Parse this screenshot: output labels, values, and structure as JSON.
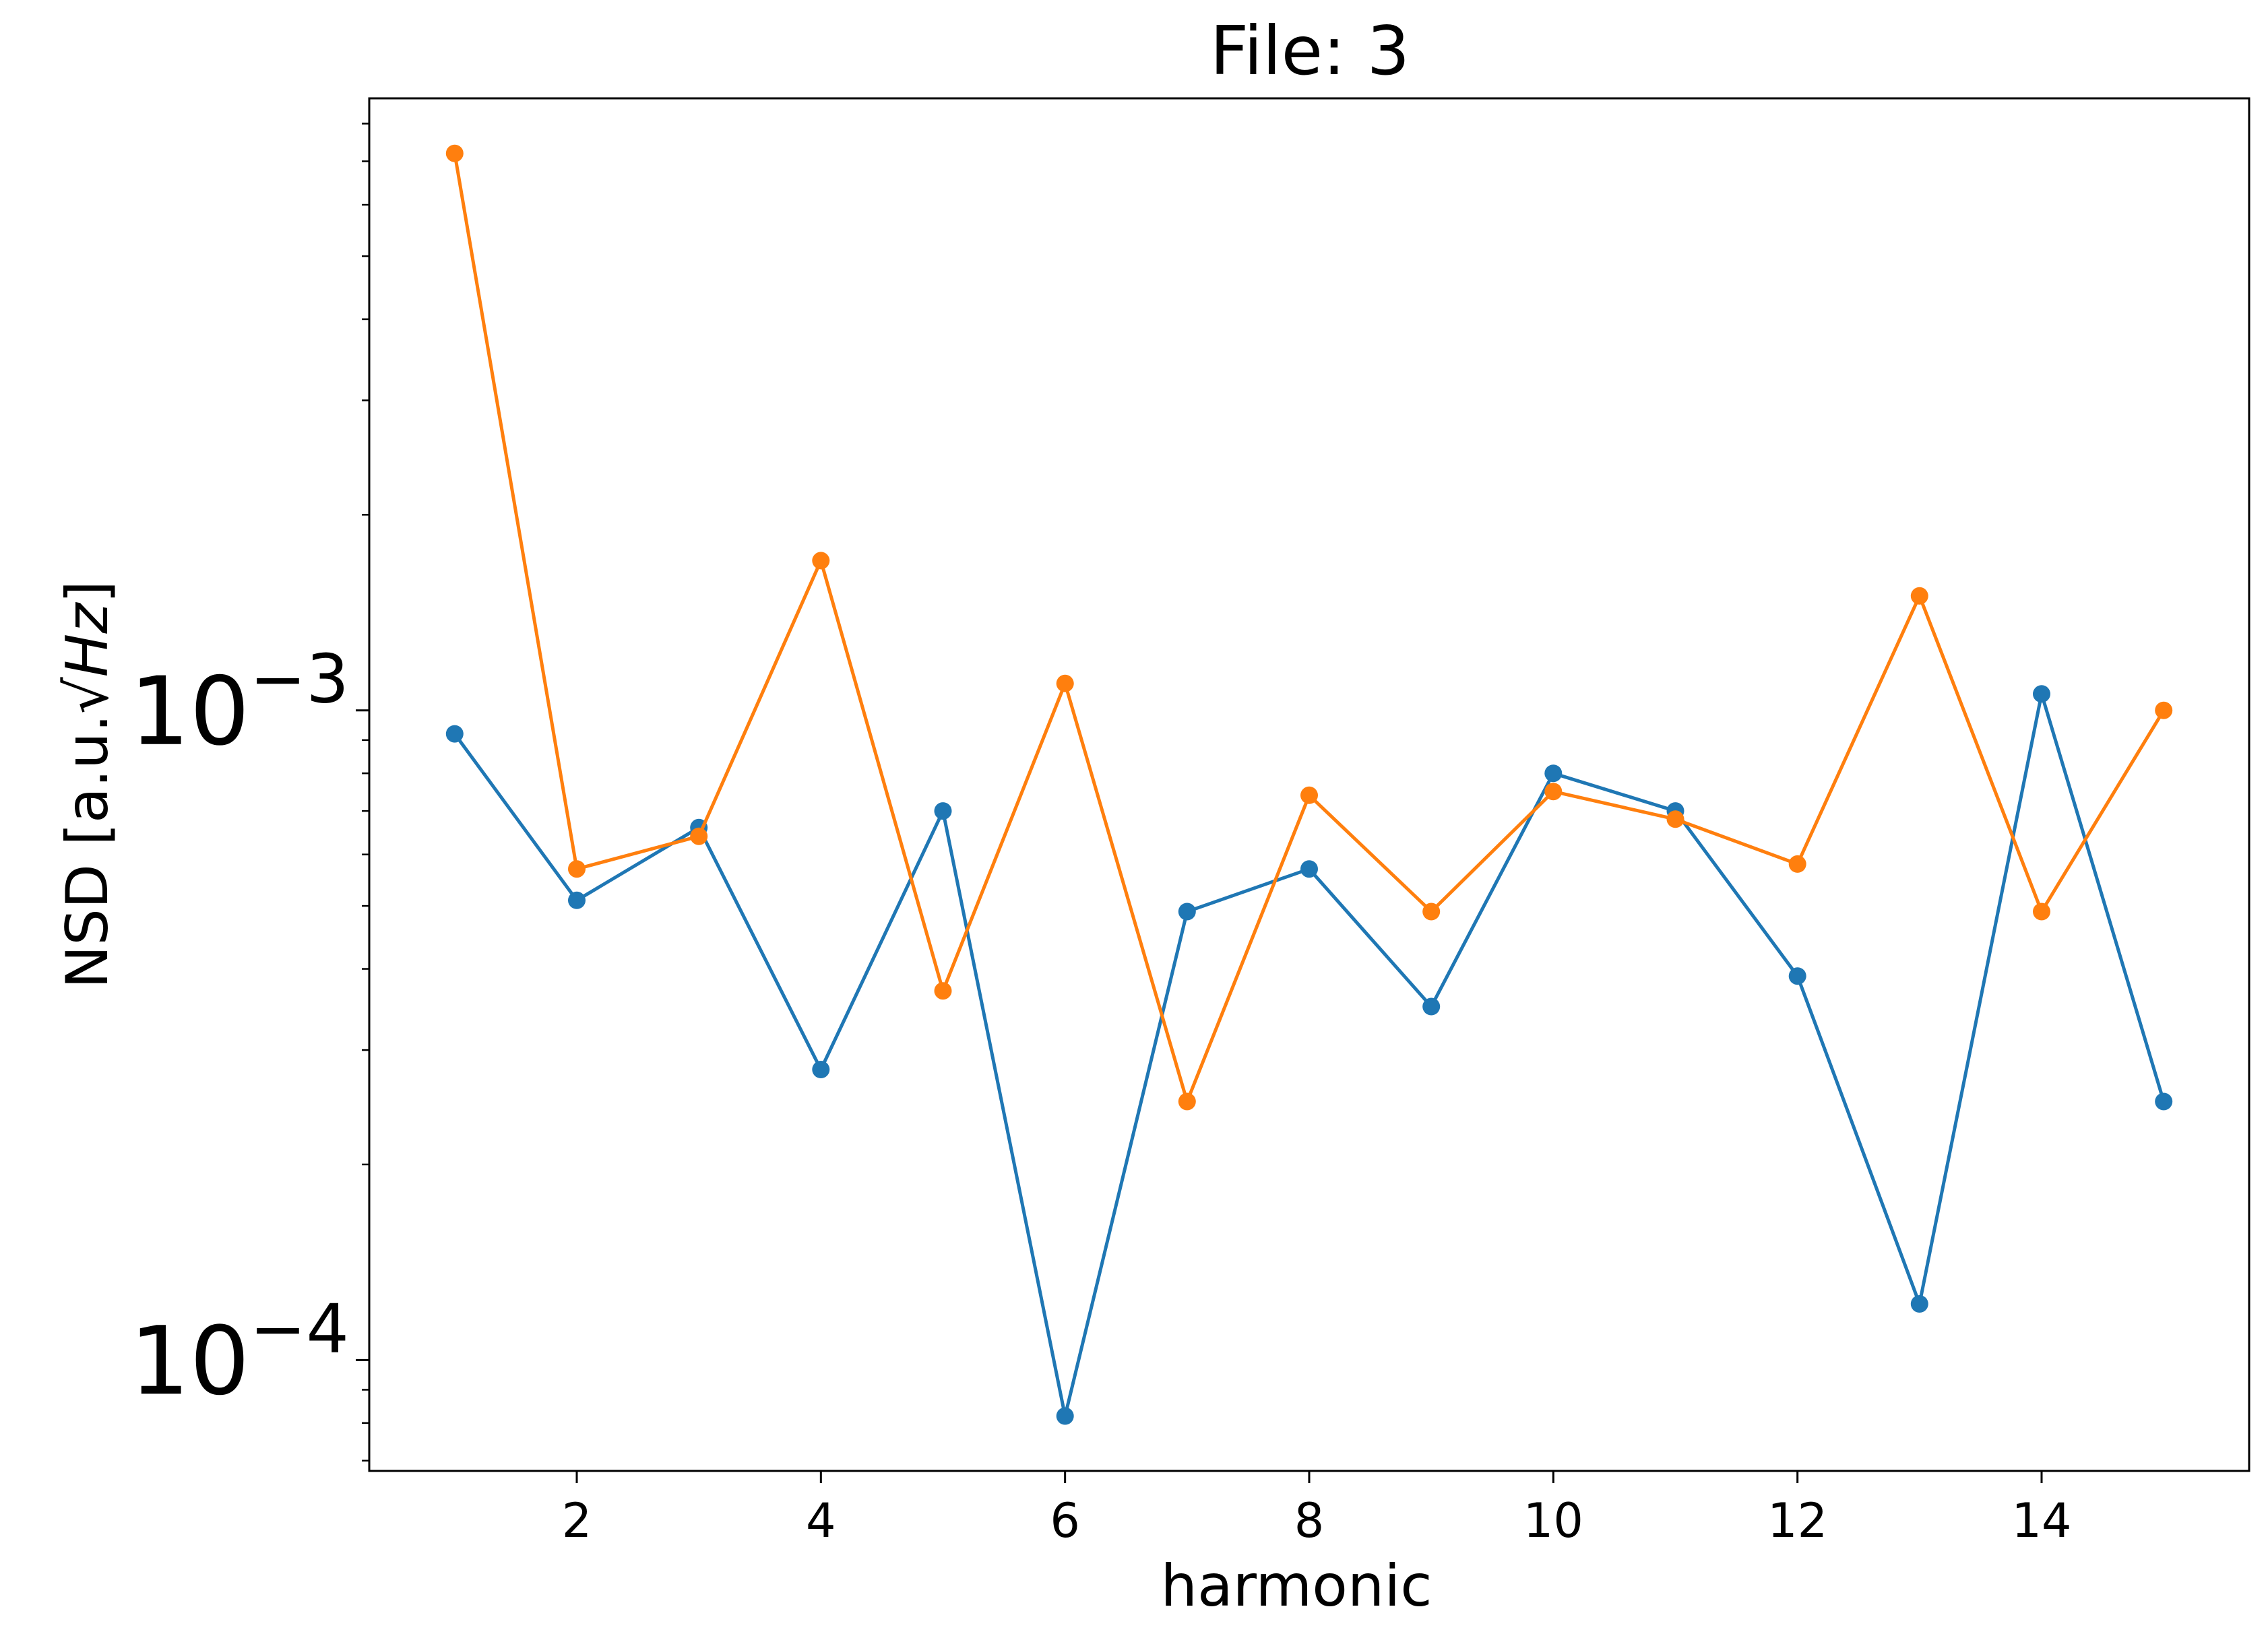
{
  "chart_data": {
    "type": "line",
    "title": "File: 3",
    "xlabel": "harmonic",
    "ylabel": "NSD [a.u.√Hz]",
    "ylabel_main": "NSD [a.u.",
    "ylabel_radicand": "Hz",
    "ylabel_close": "]",
    "yscale": "log",
    "xlim": [
      0.3,
      15.7
    ],
    "ylim": [
      6.75e-05,
      0.00875
    ],
    "grid": false,
    "x": [
      1,
      2,
      3,
      4,
      5,
      6,
      7,
      8,
      9,
      10,
      11,
      12,
      13,
      14,
      15
    ],
    "x_ticks": [
      2,
      4,
      6,
      8,
      10,
      12,
      14
    ],
    "x_tick_labels": [
      "2",
      "4",
      "6",
      "8",
      "10",
      "12",
      "14"
    ],
    "y_major_ticks": [
      {
        "value": 0.001,
        "base": "10",
        "exp": "−3"
      },
      {
        "value": 0.0001,
        "base": "10",
        "exp": "−4"
      }
    ],
    "y_minor_ticks": [
      7e-05,
      8e-05,
      9e-05,
      0.0002,
      0.0003,
      0.0004,
      0.0005,
      0.0006,
      0.0007,
      0.0008,
      0.0009,
      0.002,
      0.003,
      0.004,
      0.005,
      0.006,
      0.007,
      0.008
    ],
    "series": [
      {
        "color": "#1f77b4",
        "values": [
          0.00092,
          0.00051,
          0.00066,
          0.00028,
          0.0007,
          8.2e-05,
          0.00049,
          0.00057,
          0.00035,
          0.0008,
          0.0007,
          0.00039,
          0.000122,
          0.00106,
          0.00025
        ]
      },
      {
        "color": "#ff7f0e",
        "values": [
          0.0072,
          0.00057,
          0.00064,
          0.0017,
          0.00037,
          0.0011,
          0.00025,
          0.00074,
          0.00049,
          0.00075,
          0.00068,
          0.00058,
          0.0015,
          0.00049,
          0.001
        ]
      }
    ]
  }
}
